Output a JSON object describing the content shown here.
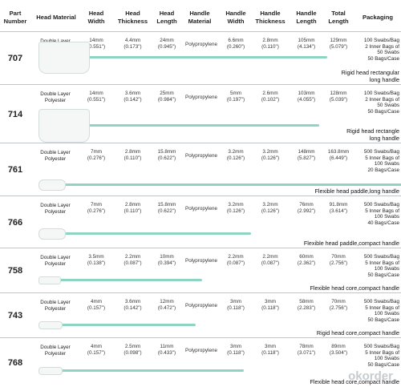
{
  "header": {
    "part": "Part\nNumber",
    "material": "Head Material",
    "head_width": "Head\nWidth",
    "head_thickness": "Head\nThickness",
    "head_length": "Head\nLength",
    "handle_material": "Handle\nMaterial",
    "handle_width": "Handle\nWidth",
    "handle_thickness": "Handle\nThickness",
    "handle_length": "Handle\nLength",
    "total_length": "Total\nLength",
    "packaging": "Packaging"
  },
  "rows": [
    {
      "part": "707",
      "material": "Double Layer\nPolyester",
      "head_width": "14mm\n(0.551\")",
      "head_thickness": "4.4mm\n(0.173\")",
      "head_length": "24mm\n(0.945\")",
      "handle_material": "Polypropylene",
      "handle_width": "6.6mm\n(0.260\")",
      "handle_thickness": "2.8mm\n(0.110\")",
      "handle_length": "105mm\n(4.134\")",
      "total_length": "129mm\n(5.079\")",
      "packaging": "100 Swabs/Bag\n2 Inner Bags of\n50 Swabs\n50 Bags/Case",
      "desc": "Rigid head rectangular\nlong handle"
    },
    {
      "part": "714",
      "material": "Double Layer\nPolyester",
      "head_width": "14mm\n(0.551\")",
      "head_thickness": "3.6mm\n(0.142\")",
      "head_length": "25mm\n(0.984\")",
      "handle_material": "Polypropylene",
      "handle_width": "5mm\n(0.197\")",
      "handle_thickness": "2.6mm\n(0.102\")",
      "handle_length": "103mm\n(4.055\")",
      "total_length": "128mm\n(5.039\")",
      "packaging": "100 Swabs/Bag\n2 Inner Bags of\n50 Swabs\n50 Bags/Case",
      "desc": "Rigid head rectangle\nlong handle"
    },
    {
      "part": "761",
      "material": "Double Layer\nPolyester",
      "head_width": "7mm\n(0.276\")",
      "head_thickness": "2.8mm\n(0.110\")",
      "head_length": "15.8mm\n(0.622\")",
      "handle_material": "Polypropylene",
      "handle_width": "3.2mm\n(0.126\")",
      "handle_thickness": "3.2mm\n(0.126\")",
      "handle_length": "148mm\n(5.827\")",
      "total_length": "163.8mm\n(6.449\")",
      "packaging": "500 Swabs/Bag\n5 Inner Bags of\n100 Swabs\n20 Bags/Case",
      "desc": "Flexible head paddle,long handle"
    },
    {
      "part": "766",
      "material": "Double Layer\nPolyester",
      "head_width": "7mm\n(0.276\")",
      "head_thickness": "2.8mm\n(0.110\")",
      "head_length": "15.8mm\n(0.622\")",
      "handle_material": "Polypropylene",
      "handle_width": "3.2mm\n(0.126\")",
      "handle_thickness": "3.2mm\n(0.126\")",
      "handle_length": "76mm\n(2.992\")",
      "total_length": "91.8mm\n(3.614\")",
      "packaging": "500 Swabs/Bag\n5 Inner Bags of\n100 Swabs\n40 Bags/Case",
      "desc": "Flexible head paddle,compact handle"
    },
    {
      "part": "758",
      "material": "Double Layer\nPolyester",
      "head_width": "3.5mm\n(0.138\")",
      "head_thickness": "2.2mm\n(0.087\")",
      "head_length": "10mm\n(0.394\")",
      "handle_material": "Polypropylene",
      "handle_width": "2.2mm\n(0.087\")",
      "handle_thickness": "2.2mm\n(0.087\")",
      "handle_length": "60mm\n(2.362\")",
      "total_length": "70mm\n(2.756\")",
      "packaging": "500 Swabs/Bag\n5 Inner Bags of\n100 Swabs\n50 Bags/Case",
      "desc": "Flexible head core,compact handle"
    },
    {
      "part": "743",
      "material": "Double Layer\nPolyester",
      "head_width": "4mm\n(0.157\")",
      "head_thickness": "3.6mm\n(0.142\")",
      "head_length": "12mm\n(0.472\")",
      "handle_material": "Polypropylene",
      "handle_width": "3mm\n(0.118\")",
      "handle_thickness": "3mm\n(0.118\")",
      "handle_length": "58mm\n(2.283\")",
      "total_length": "70mm\n(2.756\")",
      "packaging": "500 Swabs/Bag\n5 Inner Bags of\n100 Swabs\n50 Bags/Case",
      "desc": "Rigid head core,compact handle"
    },
    {
      "part": "768",
      "material": "Double Layer\nPolyester",
      "head_width": "4mm\n(0.157\")",
      "head_thickness": "2.5mm\n(0.098\")",
      "head_length": "11mm\n(0.433\")",
      "handle_material": "Polypropylene",
      "handle_width": "3mm\n(0.118\")",
      "handle_thickness": "3mm\n(0.118\")",
      "handle_length": "78mm\n(3.071\")",
      "total_length": "89mm\n(3.504\")",
      "packaging": "500 Swabs/Bag\n5 Inner Bags of\n100 Swabs\n50 Bags/Case",
      "desc": "Flexible head core,compact handle"
    }
  ],
  "watermark": "okorder"
}
